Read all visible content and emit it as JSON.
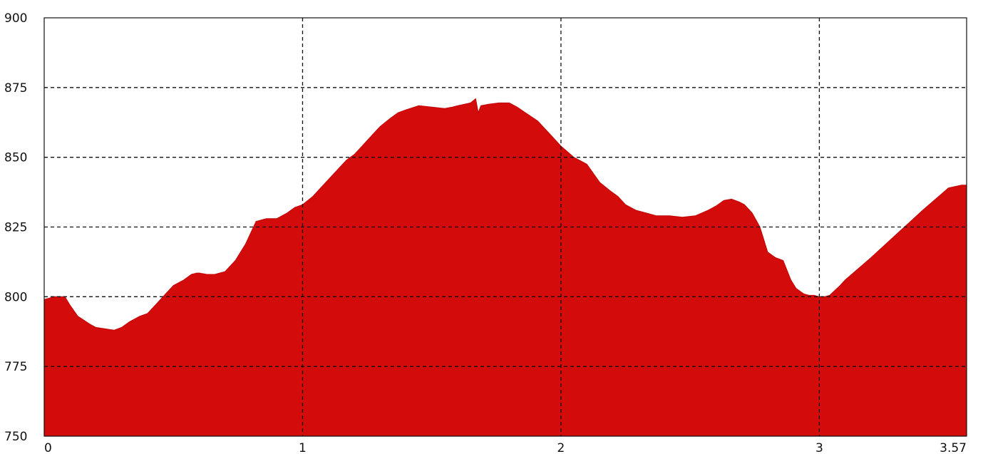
{
  "chart_data": {
    "type": "area",
    "title": "",
    "xlabel": "",
    "ylabel": "",
    "xlim": [
      0,
      3.57
    ],
    "ylim": [
      750,
      900
    ],
    "x_ticks": [
      "0",
      "1",
      "2",
      "3",
      "3.57"
    ],
    "y_ticks": [
      "750",
      "775",
      "800",
      "825",
      "850",
      "875",
      "900"
    ],
    "grid": "dashed",
    "legend": "none",
    "fill_color": "#d40b0b",
    "series": [
      {
        "x": [
          0,
          0.04,
          0.08,
          0.1,
          0.13,
          0.18,
          0.2,
          0.27,
          0.3,
          0.33,
          0.37,
          0.4,
          0.43,
          0.46,
          0.5,
          0.54,
          0.57,
          0.59,
          0.6,
          0.63,
          0.66,
          0.7,
          0.74,
          0.78,
          0.82,
          0.86,
          0.9,
          0.92,
          0.94,
          0.97,
          1.0,
          1.04,
          1.07,
          1.1,
          1.14,
          1.17,
          1.2,
          1.24,
          1.28,
          1.3,
          1.34,
          1.37,
          1.4,
          1.45,
          1.5,
          1.55,
          1.58,
          1.6,
          1.65,
          1.67,
          1.68,
          1.69,
          1.72,
          1.76,
          1.8,
          1.83,
          1.87,
          1.91,
          1.95,
          2.0,
          2.05,
          2.1,
          2.15,
          2.19,
          2.22,
          2.25,
          2.29,
          2.33,
          2.37,
          2.42,
          2.47,
          2.52,
          2.57,
          2.6,
          2.63,
          2.66,
          2.69,
          2.71,
          2.74,
          2.77,
          2.8,
          2.83,
          2.86,
          2.89,
          2.91,
          2.94,
          2.96,
          2.98,
          3.0,
          3.02,
          3.04,
          3.08,
          3.1,
          3.2,
          3.3,
          3.4,
          3.5,
          3.55,
          3.57
        ],
        "y": [
          799,
          800,
          800,
          797,
          793,
          790,
          789,
          788,
          789,
          791,
          793,
          794,
          797,
          800,
          804,
          806,
          808,
          808.5,
          808.5,
          808,
          808,
          809,
          813,
          819,
          827,
          828,
          828,
          829,
          830,
          832,
          833,
          836,
          839,
          842,
          846,
          849,
          851,
          855,
          859,
          861,
          864,
          866,
          867,
          868.5,
          868,
          867.5,
          868,
          868.5,
          869.5,
          871,
          866,
          868.5,
          869,
          869.5,
          869.5,
          868,
          865.5,
          863,
          859,
          854,
          850,
          847.5,
          841,
          838,
          836,
          833,
          831,
          830,
          829,
          829,
          828.5,
          829,
          831,
          832.5,
          834.5,
          835,
          834,
          833,
          830,
          825,
          816,
          814,
          813,
          806,
          803,
          801,
          800.5,
          800.5,
          800,
          800,
          800.5,
          804,
          806,
          814,
          822.5,
          831,
          839,
          840,
          840
        ]
      }
    ]
  }
}
